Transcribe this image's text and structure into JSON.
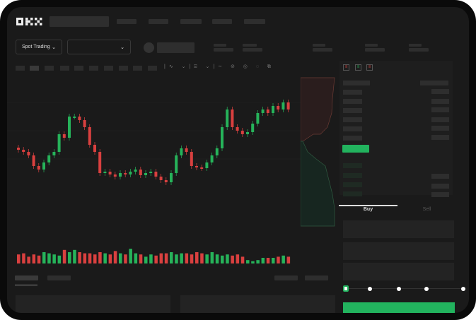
{
  "brand": {
    "logo": "OKX"
  },
  "selectors": {
    "market_type": "Spot Trading"
  },
  "orderbook": {
    "view_icons": [
      "orderbook-both-icon",
      "orderbook-bids-icon",
      "orderbook-asks-icon"
    ]
  },
  "trade": {
    "tabs": [
      "Buy",
      "Sell"
    ],
    "active_tab": "Buy",
    "leverage_steps": 5,
    "leverage_selected": 0
  },
  "colors": {
    "up": "#26b35a",
    "down": "#d9403f",
    "accent": "#22b35e"
  },
  "candles": {
    "closes": [
      93,
      90,
      85,
      70,
      65,
      75,
      85,
      90,
      115,
      110,
      140,
      140,
      135,
      125,
      100,
      90,
      60,
      62,
      58,
      55,
      60,
      58,
      62,
      65,
      57,
      60,
      62,
      55,
      50,
      47,
      60,
      85,
      95,
      90,
      70,
      68,
      67,
      75,
      85,
      95,
      125,
      150,
      125,
      120,
      115,
      118,
      130,
      145,
      150,
      145,
      155,
      150,
      160,
      150
    ],
    "volumes": [
      8,
      9,
      6,
      8,
      7,
      10,
      9,
      8,
      7,
      12,
      10,
      12,
      10,
      9,
      9,
      8,
      10,
      9,
      8,
      11,
      9,
      8,
      13,
      9,
      8,
      6,
      8,
      7,
      9,
      9,
      10,
      8,
      9,
      9,
      8,
      10,
      9,
      8,
      10,
      8,
      7,
      8,
      7,
      8,
      6,
      3,
      2,
      3,
      5,
      5,
      5,
      6,
      7,
      6
    ]
  }
}
